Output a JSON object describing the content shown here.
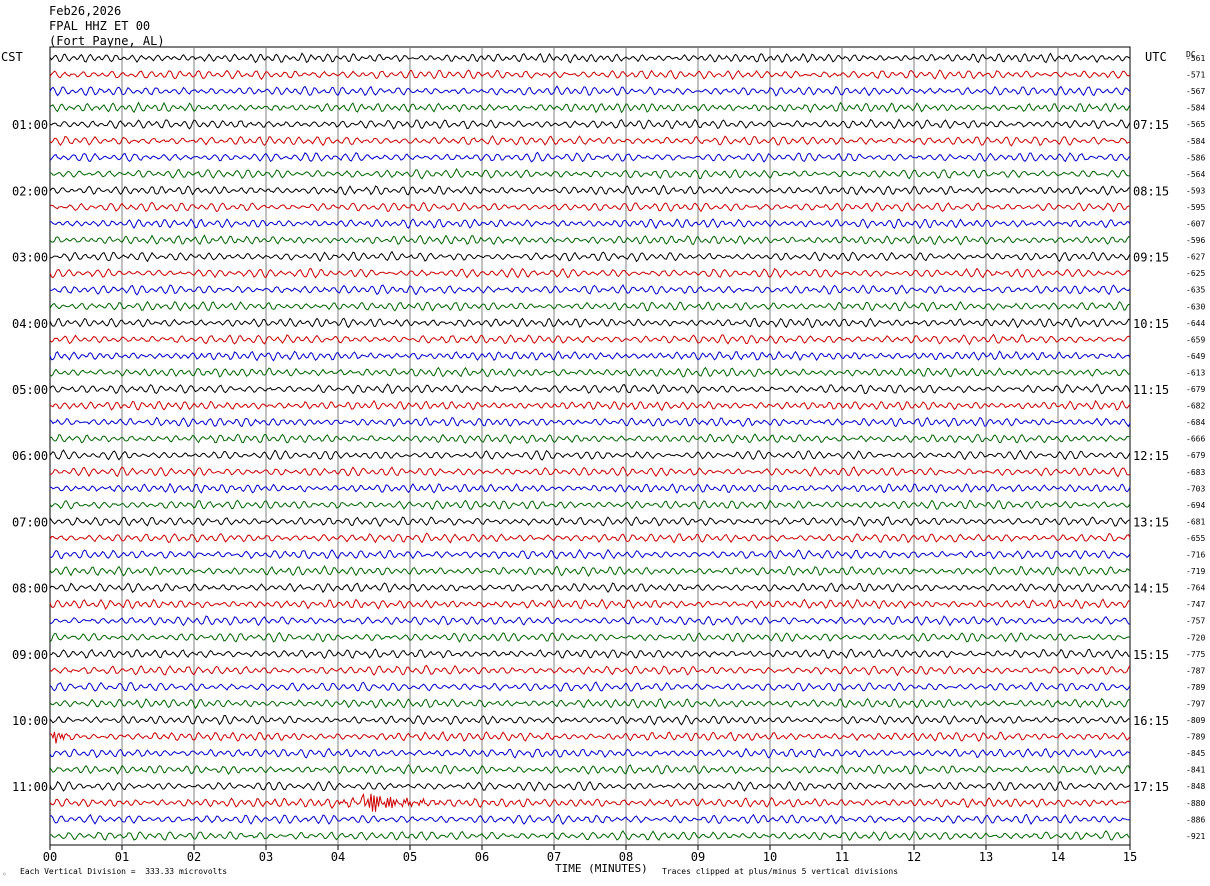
{
  "header": {
    "date": "Feb26,2026",
    "station": "FPAL HHZ ET 00",
    "location": "(Fort Payne, AL)"
  },
  "left_tz": "CST",
  "right_tz": "UTC",
  "dc_label": "DC",
  "footer": {
    "scale_note": "Each Vertical Division =  333.33 microvolts",
    "xlabel": "TIME (MINUTES)",
    "clip_note": "Traces clipped at plus/minus 5 vertical divisions",
    "corner_mark": "◦"
  },
  "chart_data": {
    "type": "line",
    "subtype": "helicorder",
    "title": "FPAL HHZ ET 00",
    "xlabel": "TIME (MINUTES)",
    "x_ticks": [
      "00",
      "01",
      "02",
      "03",
      "04",
      "05",
      "06",
      "07",
      "08",
      "09",
      "10",
      "11",
      "12",
      "13",
      "14",
      "15"
    ],
    "xlim": [
      0,
      15
    ],
    "trace_colors": [
      "#000000",
      "#cc0000",
      "#0000cc",
      "#006600"
    ],
    "left_labels": [
      "01:00",
      "02:00",
      "03:00",
      "04:00",
      "05:00",
      "06:00",
      "07:00",
      "08:00",
      "09:00",
      "10:00",
      "11:00"
    ],
    "right_labels": [
      "07:15",
      "08:15",
      "09:15",
      "10:15",
      "11:15",
      "12:15",
      "13:15",
      "14:15",
      "15:15",
      "16:15",
      "17:15"
    ],
    "dc_offsets": [
      -561,
      -571,
      -567,
      -584,
      -565,
      -584,
      -586,
      -564,
      -593,
      -595,
      -607,
      -596,
      -627,
      -625,
      -635,
      -630,
      -644,
      -659,
      -649,
      -613,
      -679,
      -682,
      -684,
      -666,
      -679,
      -683,
      -703,
      -694,
      -681,
      -655,
      -716,
      -719,
      -764,
      -747,
      -757,
      -720,
      -775,
      -787,
      -789,
      -797,
      -809,
      -789,
      -845,
      -841,
      -848,
      -880,
      -886,
      -921
    ],
    "events": [
      {
        "row": 41,
        "minute": 0.05,
        "amplitude": "moderate"
      },
      {
        "row": 45,
        "minute": 4.35,
        "amplitude": "large"
      }
    ],
    "grid": true
  }
}
